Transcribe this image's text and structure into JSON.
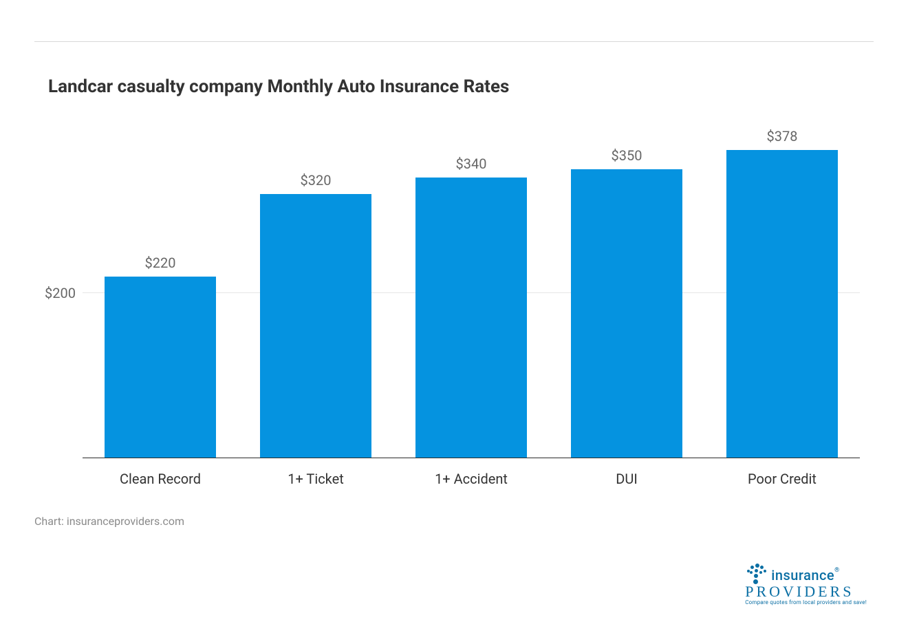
{
  "chart": {
    "type": "bar",
    "title": "Landcar casualty company Monthly Auto Insurance Rates",
    "title_fontsize": 26,
    "title_color": "#333333",
    "categories": [
      "Clean Record",
      "1+ Ticket",
      "1+ Accident",
      "DUI",
      "Poor Credit"
    ],
    "values": [
      220,
      320,
      340,
      350,
      378
    ],
    "value_labels": [
      "$220",
      "$320",
      "$340",
      "$350",
      "$378"
    ],
    "bar_color": "#0593e0",
    "bar_width_pct": 72,
    "ylim": [
      0,
      400
    ],
    "yticks": [
      {
        "value": 200,
        "label": "$200"
      }
    ],
    "grid_color": "#e6e6e6",
    "axis_color": "#2b2b2b",
    "background_color": "#ffffff",
    "x_label_fontsize": 20,
    "x_label_color": "#333333",
    "y_label_fontsize": 20,
    "y_label_color": "#666666",
    "value_label_fontsize": 20,
    "value_label_color": "#666666"
  },
  "credit": {
    "text": "Chart: insuranceproviders.com",
    "color": "#8a8a8a",
    "fontsize": 16
  },
  "logo": {
    "line1": "insurance",
    "line2": "PROVIDERS",
    "tagline": "Compare quotes from local providers and save!",
    "color": "#0b6fa4",
    "registered": "®"
  }
}
